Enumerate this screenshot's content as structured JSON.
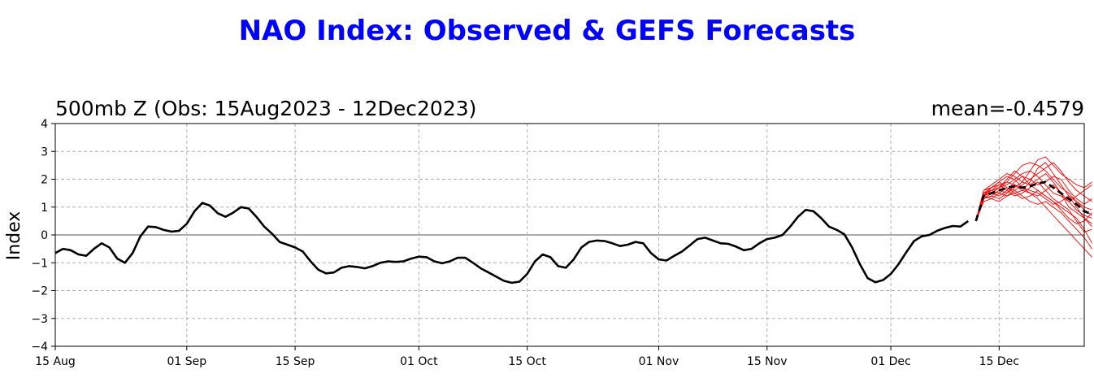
{
  "title": "NAO Index: Observed & GEFS Forecasts",
  "colors": {
    "title": "#0000ff",
    "observed": "#000000",
    "ensemble": "#ff0000",
    "mean_forecast": "#000000"
  },
  "chart_data": {
    "type": "line",
    "subtitle_left": "500mb Z (Obs: 15Aug2023 - 12Dec2023)",
    "subtitle_right": "mean=-0.4579",
    "xlabel": "",
    "ylabel": "Index",
    "x_range": [
      "2023-08-15",
      "2023-12-26"
    ],
    "ylim": [
      -4,
      4
    ],
    "yticks": [
      4,
      3,
      2,
      1,
      0,
      -1,
      -2,
      -3,
      -4
    ],
    "ytick_labels": [
      "4",
      "3",
      "2",
      "1",
      "0",
      "−1",
      "−2",
      "−3",
      "−4"
    ],
    "xticks": [
      {
        "label": "15 Aug",
        "date": "2023-08-15"
      },
      {
        "label": "01 Sep",
        "date": "2023-09-01"
      },
      {
        "label": "15 Sep",
        "date": "2023-09-15"
      },
      {
        "label": "01 Oct",
        "date": "2023-10-01"
      },
      {
        "label": "15 Oct",
        "date": "2023-10-15"
      },
      {
        "label": "01 Nov",
        "date": "2023-11-01"
      },
      {
        "label": "15 Nov",
        "date": "2023-11-15"
      },
      {
        "label": "01 Dec",
        "date": "2023-12-01"
      },
      {
        "label": "15 Dec",
        "date": "2023-12-15"
      }
    ],
    "grid": true,
    "zero_line": true,
    "observed": {
      "start_date": "2023-08-15",
      "values": [
        -0.65,
        -0.5,
        -0.55,
        -0.7,
        -0.75,
        -0.5,
        -0.3,
        -0.45,
        -0.85,
        -1.0,
        -0.65,
        -0.05,
        0.3,
        0.28,
        0.18,
        0.12,
        0.15,
        0.4,
        0.85,
        1.15,
        1.05,
        0.78,
        0.65,
        0.8,
        1.0,
        0.95,
        0.65,
        0.3,
        0.05,
        -0.25,
        -0.35,
        -0.45,
        -0.6,
        -0.95,
        -1.25,
        -1.38,
        -1.35,
        -1.18,
        -1.12,
        -1.15,
        -1.2,
        -1.12,
        -1.0,
        -0.95,
        -0.97,
        -0.95,
        -0.85,
        -0.78,
        -0.8,
        -0.95,
        -1.02,
        -0.95,
        -0.82,
        -0.82,
        -1.0,
        -1.2,
        -1.35,
        -1.5,
        -1.65,
        -1.72,
        -1.68,
        -1.4,
        -0.95,
        -0.7,
        -0.8,
        -1.12,
        -1.18,
        -0.88,
        -0.45,
        -0.25,
        -0.2,
        -0.22,
        -0.3,
        -0.4,
        -0.35,
        -0.25,
        -0.3,
        -0.65,
        -0.88,
        -0.92,
        -0.75,
        -0.6,
        -0.38,
        -0.15,
        -0.1,
        -0.2,
        -0.3,
        -0.32,
        -0.42,
        -0.55,
        -0.5,
        -0.3,
        -0.15,
        -0.1,
        0.0,
        0.3,
        0.65,
        0.9,
        0.85,
        0.6,
        0.3,
        0.18,
        0.02,
        -0.45,
        -1.05,
        -1.55,
        -1.7,
        -1.62,
        -1.4,
        -1.05,
        -0.62,
        -0.22,
        -0.05,
        0.0,
        0.15,
        0.25,
        0.32,
        0.3,
        0.5
      ]
    },
    "forecast_mean": {
      "start_date": "2023-12-12",
      "values": [
        0.5,
        1.4,
        1.5,
        1.6,
        1.7,
        1.75,
        1.7,
        1.75,
        1.85,
        1.9,
        1.7,
        1.5,
        1.3,
        1.1,
        0.85,
        0.75
      ]
    },
    "ensemble_members": [
      {
        "start_date": "2023-12-12",
        "values": [
          0.5,
          1.3,
          1.5,
          1.7,
          2.0,
          2.3,
          2.1,
          1.8,
          1.6,
          1.4,
          1.2,
          1.0,
          0.8,
          0.6,
          0.2,
          -0.3
        ]
      },
      {
        "start_date": "2023-12-12",
        "values": [
          0.5,
          1.5,
          1.6,
          1.8,
          1.9,
          2.2,
          2.5,
          2.6,
          2.5,
          2.3,
          2.0,
          1.7,
          1.5,
          1.2,
          1.0,
          0.9
        ]
      },
      {
        "start_date": "2023-12-12",
        "values": [
          0.5,
          1.4,
          1.3,
          1.2,
          1.4,
          1.6,
          1.8,
          2.0,
          2.2,
          2.4,
          2.6,
          2.3,
          1.9,
          1.6,
          1.4,
          1.2
        ]
      },
      {
        "start_date": "2023-12-12",
        "values": [
          0.5,
          1.6,
          1.7,
          1.9,
          2.1,
          2.0,
          1.7,
          1.5,
          1.3,
          1.0,
          0.7,
          0.4,
          0.1,
          -0.2,
          -0.5,
          -0.8
        ]
      },
      {
        "start_date": "2023-12-12",
        "values": [
          0.5,
          1.3,
          1.4,
          1.6,
          1.5,
          1.7,
          1.9,
          2.3,
          2.7,
          2.8,
          2.5,
          2.2,
          2.0,
          1.8,
          1.7,
          1.9
        ]
      },
      {
        "start_date": "2023-12-12",
        "values": [
          0.5,
          1.5,
          1.7,
          1.8,
          1.6,
          1.4,
          1.5,
          1.7,
          1.9,
          1.6,
          1.3,
          1.1,
          0.9,
          0.5,
          0.1,
          0.2
        ]
      },
      {
        "start_date": "2023-12-12",
        "values": [
          0.5,
          1.4,
          1.5,
          1.4,
          1.6,
          1.9,
          2.1,
          2.0,
          1.8,
          1.9,
          2.1,
          2.0,
          1.6,
          1.3,
          1.1,
          1.3
        ]
      },
      {
        "start_date": "2023-12-12",
        "values": [
          0.5,
          1.2,
          1.3,
          1.5,
          1.7,
          1.6,
          1.4,
          1.2,
          1.1,
          1.2,
          1.0,
          0.8,
          0.5,
          0.2,
          -0.1,
          -0.5
        ]
      },
      {
        "start_date": "2023-12-12",
        "values": [
          0.5,
          1.5,
          1.6,
          1.7,
          1.8,
          2.0,
          2.2,
          2.3,
          2.1,
          1.8,
          1.5,
          1.4,
          1.2,
          1.4,
          1.6,
          1.8
        ]
      },
      {
        "start_date": "2023-12-12",
        "values": [
          0.5,
          1.4,
          1.6,
          1.5,
          1.4,
          1.5,
          1.6,
          1.5,
          1.4,
          1.6,
          1.8,
          1.5,
          1.2,
          0.9,
          0.7,
          0.6
        ]
      },
      {
        "start_date": "2023-12-12",
        "values": [
          0.5,
          1.6,
          1.8,
          2.0,
          2.2,
          2.1,
          1.9,
          1.8,
          2.0,
          2.2,
          1.9,
          1.5,
          1.0,
          0.8,
          0.6,
          0.3
        ]
      },
      {
        "start_date": "2023-12-12",
        "values": [
          0.5,
          1.3,
          1.4,
          1.3,
          1.5,
          1.8,
          1.7,
          1.6,
          1.5,
          1.3,
          1.1,
          1.2,
          1.4,
          1.2,
          0.9,
          0.7
        ]
      },
      {
        "start_date": "2023-12-12",
        "values": [
          0.5,
          1.5,
          1.5,
          1.7,
          1.9,
          1.8,
          1.6,
          1.9,
          2.4,
          2.6,
          2.2,
          1.8,
          1.4,
          1.0,
          0.6,
          0.4
        ]
      },
      {
        "start_date": "2023-12-12",
        "values": [
          0.5,
          1.4,
          1.7,
          1.9,
          1.7,
          1.5,
          1.3,
          1.4,
          1.6,
          1.4,
          1.2,
          0.9,
          0.6,
          0.4,
          0.5,
          0.8
        ]
      }
    ]
  }
}
